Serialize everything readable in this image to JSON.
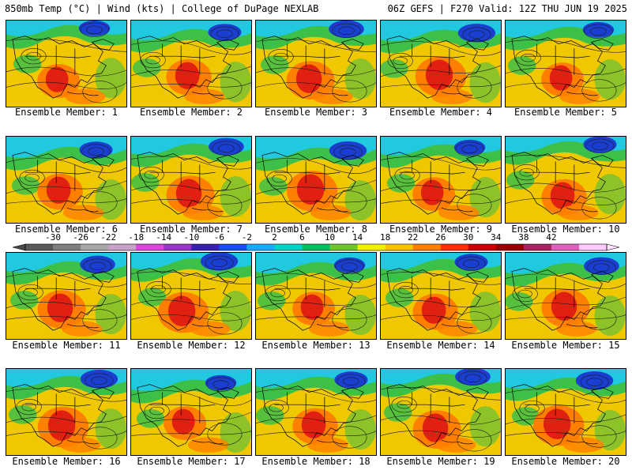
{
  "header": {
    "left_title": "850mb Temp (°C) | Wind (kts) | College of DuPage NEXLAB",
    "right_title": "06Z GEFS | F270 Valid: 12Z THU JUN 19 2025"
  },
  "colorbar": {
    "labels": [
      "-30",
      "-26",
      "-22",
      "-18",
      "-14",
      "-10",
      "-6",
      "-2",
      "2",
      "6",
      "10",
      "14",
      "18",
      "22",
      "26",
      "30",
      "34",
      "38",
      "42"
    ],
    "colors": [
      "#5a5a5a",
      "#7f7f7f",
      "#a8a8a8",
      "#c8a2c8",
      "#dd44dd",
      "#9933cc",
      "#3a1fb5",
      "#1450f0",
      "#19a8ff",
      "#00d2c8",
      "#00c060",
      "#6cc82a",
      "#f0f000",
      "#ffc000",
      "#ff8000",
      "#ff3000",
      "#c80000",
      "#960000",
      "#aa2060",
      "#e060c0",
      "#ffc8ff"
    ]
  },
  "members": [
    {
      "label": "Ensemble Member: 1"
    },
    {
      "label": "Ensemble Member: 2"
    },
    {
      "label": "Ensemble Member: 3"
    },
    {
      "label": "Ensemble Member: 4"
    },
    {
      "label": "Ensemble Member: 5"
    },
    {
      "label": "Ensemble Member: 6"
    },
    {
      "label": "Ensemble Member: 7"
    },
    {
      "label": "Ensemble Member: 8"
    },
    {
      "label": "Ensemble Member: 9"
    },
    {
      "label": "Ensemble Member: 10"
    },
    {
      "label": "Ensemble Member: 11"
    },
    {
      "label": "Ensemble Member: 12"
    },
    {
      "label": "Ensemble Member: 13"
    },
    {
      "label": "Ensemble Member: 14"
    },
    {
      "label": "Ensemble Member: 15"
    },
    {
      "label": "Ensemble Member: 16"
    },
    {
      "label": "Ensemble Member: 17"
    },
    {
      "label": "Ensemble Member: 18"
    },
    {
      "label": "Ensemble Member: 19"
    },
    {
      "label": "Ensemble Member: 20"
    }
  ],
  "map_colors": {
    "cold": "#1a3fd0",
    "cool": "#20c8e0",
    "mild": "#3cc048",
    "warm": "#f0c800",
    "hot": "#ff8000",
    "very_hot": "#e02010",
    "contour": "#1a1a1a",
    "coast": "#000000"
  }
}
